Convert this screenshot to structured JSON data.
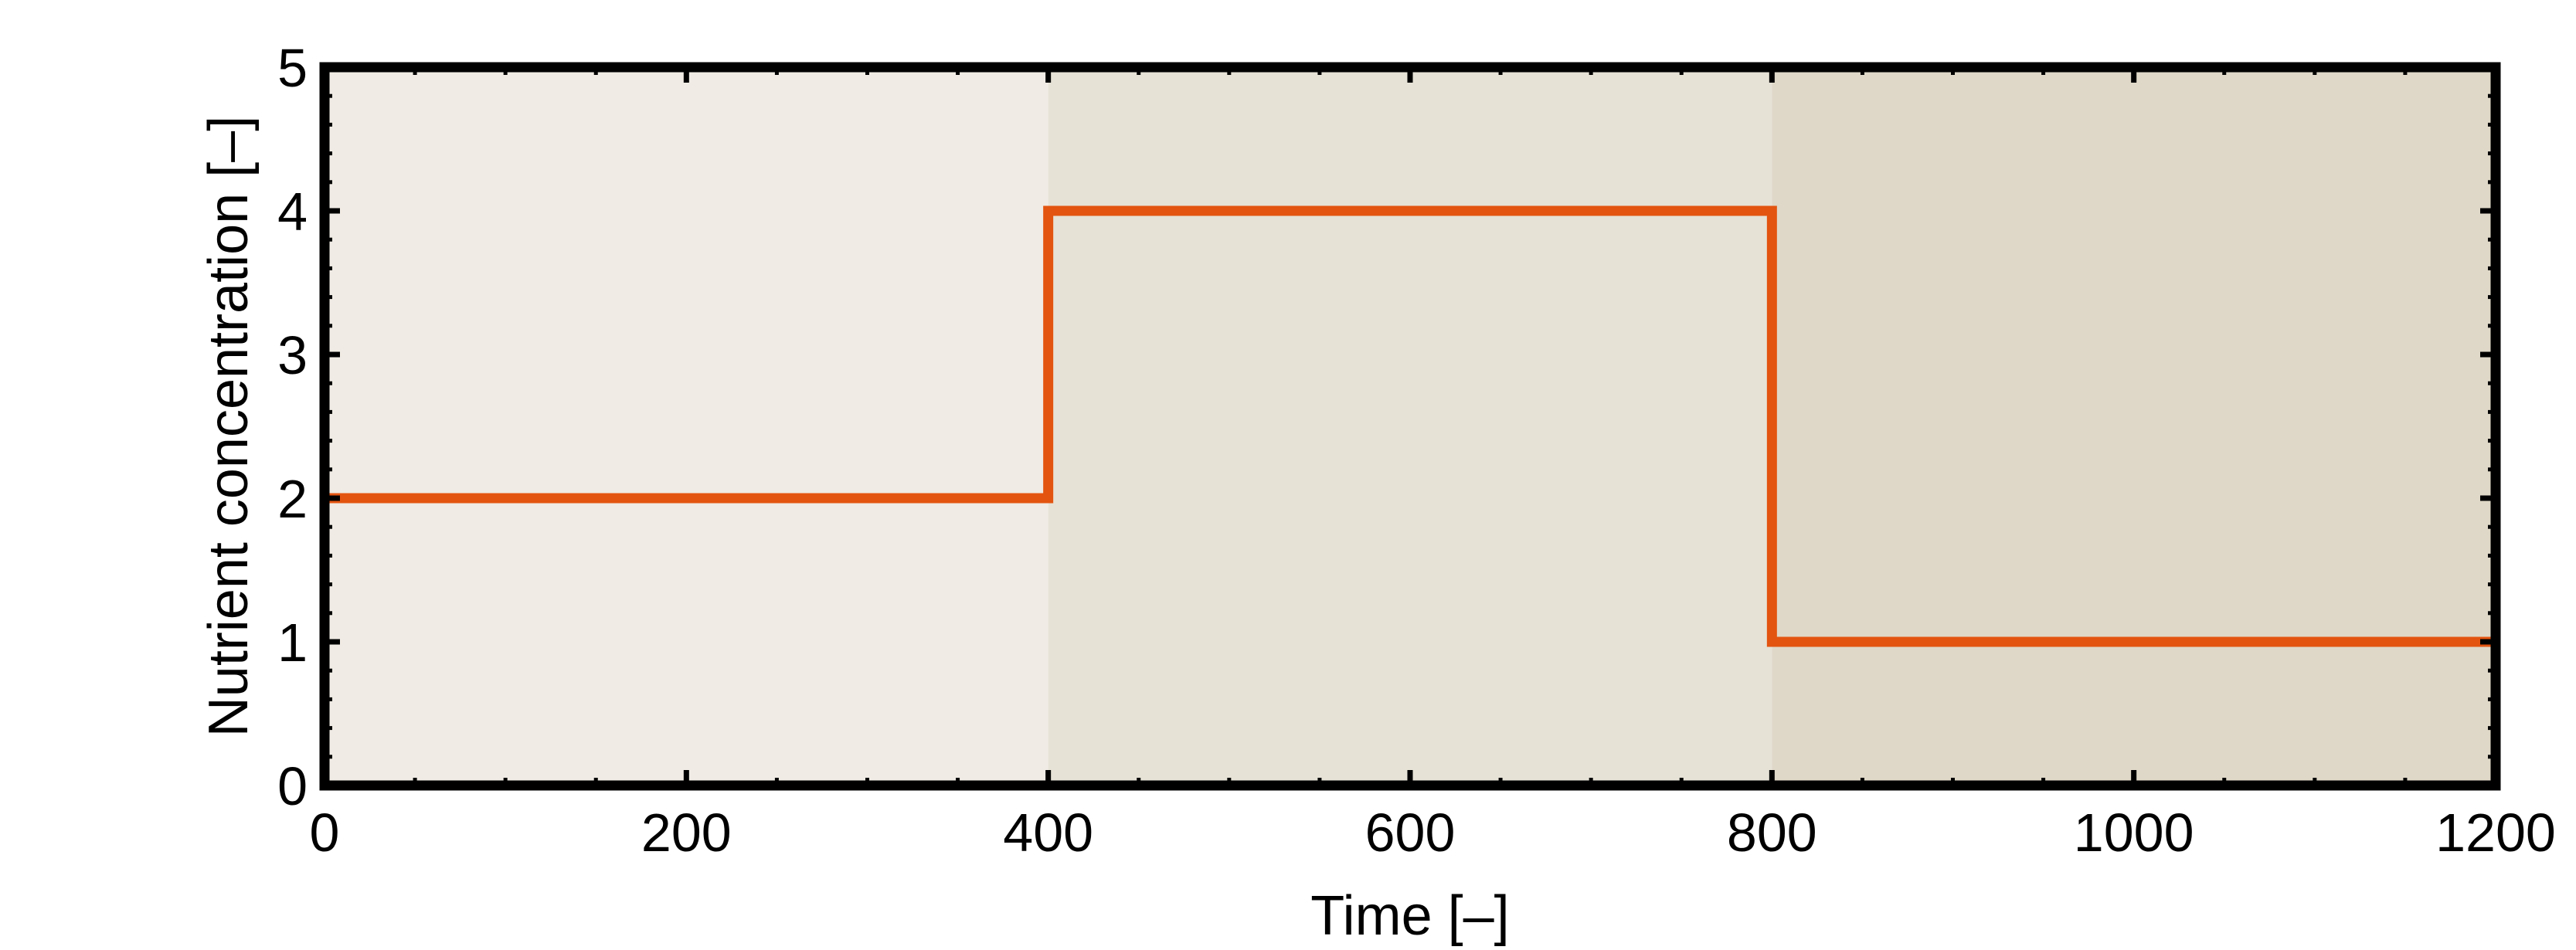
{
  "chart_data": {
    "type": "line",
    "step": true,
    "title": "",
    "xlabel": "Time [–]",
    "ylabel": "Nutrient concentration [–]",
    "xlim": [
      0,
      1200
    ],
    "ylim": [
      0,
      5
    ],
    "x_ticks": [
      0,
      200,
      400,
      600,
      800,
      1000,
      1200
    ],
    "y_ticks": [
      0,
      1,
      2,
      3,
      4,
      5
    ],
    "grid": false,
    "legend": "none",
    "series": [
      {
        "x": [
          0,
          400,
          400,
          800,
          800,
          1200
        ],
        "y": [
          2,
          2,
          4,
          4,
          1,
          1
        ],
        "color": "#e35410"
      }
    ],
    "background_bands": [
      {
        "x": [
          0,
          400
        ],
        "color": "#f0ebe4"
      },
      {
        "x": [
          400,
          800
        ],
        "color": "#e6e2d6"
      },
      {
        "x": [
          800,
          1200
        ],
        "color": "#dfd8c8"
      }
    ],
    "frame_color": "#000000"
  }
}
